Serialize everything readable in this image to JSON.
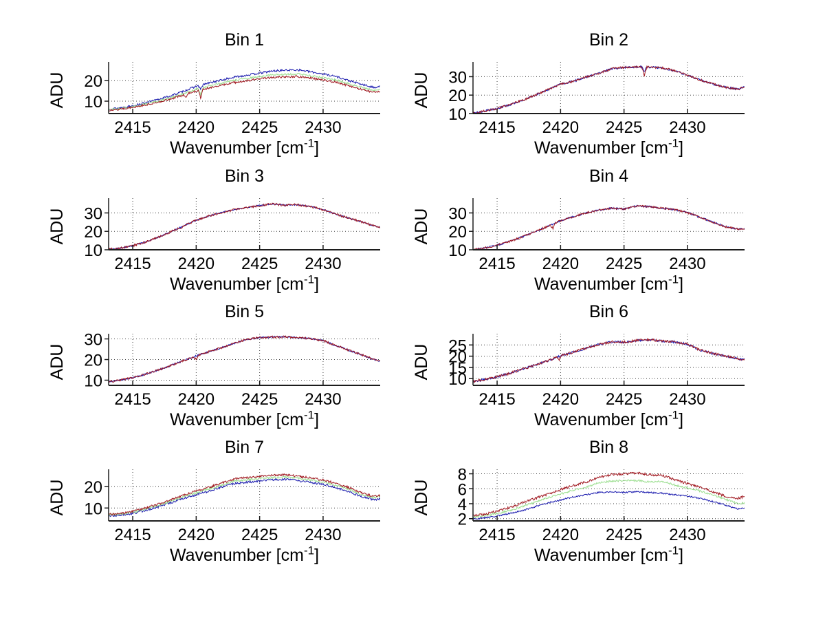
{
  "labels": {
    "ylabel": "ADU",
    "xlabel_pre": "Wavenumber [cm",
    "xlabel_sup": "-1",
    "xlabel_post": "]"
  },
  "style": {
    "line_colors": {
      "blue": "#1a1aae",
      "green": "#9ade8e",
      "red": "#a01820"
    },
    "grid_color": "#3c3c3c",
    "axis_color": "#1c1c1c",
    "background": "#ffffff",
    "grid": "dotted",
    "legend": "none"
  },
  "chart_data": [
    {
      "type": "line",
      "title": "Bin 1",
      "xlabel": "Wavenumber [cm-1]",
      "ylabel": "ADU",
      "xlim": [
        2413.1,
        2434.5
      ],
      "xticks": [
        2415,
        2420,
        2425,
        2430
      ],
      "ylim": [
        4,
        29
      ],
      "yticks": [
        10,
        20
      ],
      "x": [
        2413.2,
        2414,
        2415,
        2416,
        2417,
        2418,
        2419,
        2420,
        2421,
        2422,
        2423,
        2424,
        2425,
        2426,
        2427,
        2428,
        2429,
        2430,
        2431,
        2432,
        2433,
        2434,
        2434.5
      ],
      "series": [
        {
          "name": "blue",
          "color_key": "blue",
          "noise": 0.5,
          "spikes": [
            [
              2420.35,
              2.0
            ]
          ],
          "y": [
            6.2,
            6.8,
            7.8,
            9.2,
            10.8,
            12.6,
            14.8,
            17.2,
            18.8,
            20.2,
            21.6,
            22.6,
            23.6,
            24.6,
            25.0,
            25.2,
            24.2,
            23.2,
            22.0,
            20.0,
            18.2,
            16.6,
            17.3
          ]
        },
        {
          "name": "green",
          "color_key": "green",
          "noise": 0.45,
          "spikes": [
            [
              2420.35,
              3.0
            ]
          ],
          "y": [
            5.9,
            6.4,
            7.3,
            8.6,
            10.0,
            11.7,
            13.7,
            15.8,
            17.3,
            18.7,
            20.0,
            21.0,
            21.9,
            22.7,
            23.0,
            23.2,
            22.3,
            21.4,
            20.3,
            18.5,
            16.7,
            15.2,
            15.8
          ]
        },
        {
          "name": "red",
          "color_key": "red",
          "noise": 0.5,
          "spikes": [
            [
              2419.2,
              1.2
            ],
            [
              2420.35,
              4.0
            ]
          ],
          "y": [
            5.7,
            6.1,
            7.0,
            8.2,
            9.5,
            11.1,
            13.0,
            15.0,
            16.4,
            17.7,
            19.0,
            20.0,
            20.8,
            21.5,
            21.8,
            22.0,
            21.1,
            20.3,
            19.2,
            17.5,
            15.8,
            14.3,
            14.9
          ]
        }
      ]
    },
    {
      "type": "line",
      "title": "Bin 2",
      "xlabel": "Wavenumber [cm-1]",
      "ylabel": "ADU",
      "xlim": [
        2413.1,
        2434.5
      ],
      "xticks": [
        2415,
        2420,
        2425,
        2430
      ],
      "ylim": [
        10,
        38
      ],
      "yticks": [
        10,
        20,
        30
      ],
      "x": [
        2413.2,
        2414,
        2415,
        2416,
        2417,
        2418,
        2419,
        2420,
        2421,
        2422,
        2423,
        2424,
        2425,
        2426,
        2427,
        2428,
        2429,
        2430,
        2431,
        2432,
        2433,
        2434,
        2434.5
      ],
      "series": [
        {
          "name": "blue",
          "color_key": "blue",
          "noise": 0.55,
          "spikes": [
            [
              2426.6,
              2.5
            ]
          ],
          "y": [
            10.2,
            11.3,
            12.8,
            14.8,
            17.2,
            20.0,
            23.0,
            26.0,
            27.5,
            29.8,
            31.8,
            34.3,
            35.0,
            35.3,
            35.2,
            34.8,
            33.2,
            30.8,
            28.3,
            26.0,
            24.2,
            23.2,
            24.6
          ]
        },
        {
          "name": "red",
          "color_key": "red",
          "noise": 0.6,
          "spikes": [
            [
              2426.6,
              4.5
            ]
          ],
          "y": [
            10.2,
            11.3,
            12.8,
            14.8,
            17.2,
            20.0,
            23.0,
            26.0,
            27.5,
            29.8,
            31.8,
            34.3,
            35.0,
            35.3,
            35.2,
            34.8,
            33.2,
            30.8,
            28.3,
            26.0,
            24.2,
            23.2,
            24.6
          ]
        }
      ]
    },
    {
      "type": "line",
      "title": "Bin 3",
      "xlabel": "Wavenumber [cm-1]",
      "ylabel": "ADU",
      "xlim": [
        2413.1,
        2434.5
      ],
      "xticks": [
        2415,
        2420,
        2425,
        2430
      ],
      "ylim": [
        10,
        38
      ],
      "yticks": [
        10,
        20,
        30
      ],
      "x": [
        2413.2,
        2414,
        2415,
        2416,
        2417,
        2418,
        2419,
        2420,
        2421,
        2422,
        2423,
        2424,
        2425,
        2426,
        2427,
        2428,
        2429,
        2430,
        2431,
        2432,
        2433,
        2434,
        2434.5
      ],
      "series": [
        {
          "name": "blue",
          "color_key": "blue",
          "noise": 0.35,
          "spikes": [],
          "y": [
            10.3,
            10.9,
            12.2,
            14.2,
            16.8,
            19.8,
            23.0,
            26.0,
            28.3,
            30.3,
            31.8,
            33.0,
            34.0,
            34.8,
            34.2,
            34.5,
            33.4,
            31.8,
            29.3,
            27.3,
            25.2,
            23.0,
            22.3
          ]
        },
        {
          "name": "red",
          "color_key": "red",
          "noise": 0.6,
          "spikes": [
            [
              2418.8,
              1.3
            ]
          ],
          "y": [
            10.3,
            10.9,
            12.2,
            14.2,
            16.8,
            19.8,
            23.0,
            26.0,
            28.3,
            30.3,
            31.8,
            33.0,
            34.0,
            34.8,
            34.2,
            34.5,
            33.4,
            31.8,
            29.3,
            27.3,
            25.2,
            23.0,
            22.3
          ]
        }
      ]
    },
    {
      "type": "line",
      "title": "Bin 4",
      "xlabel": "Wavenumber [cm-1]",
      "ylabel": "ADU",
      "xlim": [
        2413.1,
        2434.5
      ],
      "xticks": [
        2415,
        2420,
        2425,
        2430
      ],
      "ylim": [
        10,
        38
      ],
      "yticks": [
        10,
        20,
        30
      ],
      "x": [
        2413.2,
        2414,
        2415,
        2416,
        2417,
        2418,
        2419,
        2420,
        2421,
        2422,
        2423,
        2424,
        2425,
        2426,
        2427,
        2428,
        2429,
        2430,
        2431,
        2432,
        2433,
        2434,
        2434.5
      ],
      "series": [
        {
          "name": "blue",
          "color_key": "blue",
          "noise": 0.45,
          "spikes": [],
          "y": [
            10.1,
            11.0,
            12.5,
            14.5,
            17.0,
            19.8,
            22.8,
            25.8,
            28.0,
            30.0,
            31.5,
            32.5,
            32.2,
            33.8,
            33.4,
            32.6,
            31.8,
            30.2,
            27.6,
            25.0,
            22.5,
            21.2,
            21.5
          ]
        },
        {
          "name": "red",
          "color_key": "red",
          "noise": 0.55,
          "spikes": [
            [
              2419.4,
              2.5
            ]
          ],
          "y": [
            10.1,
            11.0,
            12.5,
            14.5,
            17.0,
            19.8,
            22.8,
            25.8,
            28.0,
            30.0,
            31.5,
            32.5,
            32.2,
            33.8,
            33.4,
            32.6,
            31.8,
            30.2,
            27.6,
            25.0,
            22.5,
            21.2,
            21.5
          ]
        }
      ]
    },
    {
      "type": "line",
      "title": "Bin 5",
      "xlabel": "Wavenumber [cm-1]",
      "ylabel": "ADU",
      "xlim": [
        2413.1,
        2434.5
      ],
      "xticks": [
        2415,
        2420,
        2425,
        2430
      ],
      "ylim": [
        7.5,
        32.5
      ],
      "yticks": [
        10,
        20,
        30
      ],
      "x": [
        2413.2,
        2414,
        2415,
        2416,
        2417,
        2418,
        2419,
        2420,
        2421,
        2422,
        2423,
        2424,
        2425,
        2426,
        2427,
        2428,
        2429,
        2430,
        2431,
        2432,
        2433,
        2434,
        2434.5
      ],
      "series": [
        {
          "name": "blue",
          "color_key": "blue",
          "noise": 0.4,
          "spikes": [],
          "y": [
            9.3,
            10.0,
            11.2,
            12.9,
            14.9,
            17.1,
            19.5,
            21.8,
            23.8,
            25.8,
            27.8,
            29.8,
            30.6,
            30.9,
            31.0,
            30.6,
            30.2,
            29.2,
            26.8,
            24.6,
            22.4,
            20.0,
            19.2
          ]
        },
        {
          "name": "red",
          "color_key": "red",
          "noise": 0.5,
          "spikes": [
            [
              2420.0,
              1.8
            ]
          ],
          "y": [
            9.3,
            10.0,
            11.2,
            12.9,
            14.9,
            17.1,
            19.5,
            21.8,
            23.8,
            25.8,
            27.8,
            29.8,
            30.6,
            30.9,
            31.0,
            30.6,
            30.2,
            29.2,
            26.8,
            24.6,
            22.4,
            20.0,
            19.2
          ]
        }
      ]
    },
    {
      "type": "line",
      "title": "Bin 6",
      "xlabel": "Wavenumber [cm-1]",
      "ylabel": "ADU",
      "xlim": [
        2413.1,
        2434.5
      ],
      "xticks": [
        2415,
        2420,
        2425,
        2430
      ],
      "ylim": [
        7,
        30
      ],
      "yticks": [
        10,
        15,
        20,
        25
      ],
      "x": [
        2413.2,
        2414,
        2415,
        2416,
        2417,
        2418,
        2419,
        2420,
        2421,
        2422,
        2423,
        2424,
        2425,
        2426,
        2427,
        2428,
        2429,
        2430,
        2431,
        2432,
        2433,
        2434,
        2434.5
      ],
      "series": [
        {
          "name": "blue",
          "color_key": "blue",
          "noise": 0.5,
          "spikes": [],
          "y": [
            8.8,
            9.6,
            10.8,
            12.4,
            14.2,
            16.0,
            18.0,
            20.2,
            21.8,
            23.6,
            25.2,
            26.4,
            26.2,
            27.0,
            27.4,
            26.7,
            26.4,
            25.3,
            22.7,
            21.2,
            20.1,
            18.9,
            18.4
          ]
        },
        {
          "name": "red",
          "color_key": "red",
          "noise": 0.55,
          "spikes": [
            [
              2419.9,
              1.5
            ]
          ],
          "y": [
            8.8,
            9.6,
            10.8,
            12.4,
            14.2,
            16.0,
            18.0,
            20.2,
            21.8,
            23.6,
            25.2,
            26.4,
            26.2,
            27.0,
            27.4,
            26.7,
            26.4,
            25.3,
            22.7,
            21.2,
            20.1,
            18.9,
            18.4
          ]
        }
      ]
    },
    {
      "type": "line",
      "title": "Bin 7",
      "xlabel": "Wavenumber [cm-1]",
      "ylabel": "ADU",
      "xlim": [
        2413.1,
        2434.5
      ],
      "xticks": [
        2415,
        2420,
        2425,
        2430
      ],
      "ylim": [
        4,
        28
      ],
      "yticks": [
        10,
        20
      ],
      "x": [
        2413.2,
        2414,
        2415,
        2416,
        2417,
        2418,
        2419,
        2420,
        2421,
        2422,
        2423,
        2424,
        2425,
        2426,
        2427,
        2428,
        2429,
        2430,
        2431,
        2432,
        2433,
        2434,
        2434.5
      ],
      "series": [
        {
          "name": "blue",
          "color_key": "blue",
          "noise": 0.5,
          "spikes": [],
          "y": [
            6.5,
            6.7,
            7.5,
            8.9,
            10.5,
            12.4,
            14.4,
            16.2,
            17.8,
            19.7,
            21.4,
            22.0,
            22.5,
            23.1,
            23.4,
            22.7,
            21.9,
            21.0,
            19.5,
            17.6,
            15.3,
            13.8,
            14.3
          ]
        },
        {
          "name": "green",
          "color_key": "green",
          "noise": 0.45,
          "spikes": [],
          "y": [
            6.8,
            7.1,
            8.0,
            9.5,
            11.2,
            13.2,
            15.3,
            17.1,
            18.8,
            20.7,
            22.5,
            23.1,
            23.6,
            24.2,
            24.5,
            23.8,
            23.0,
            22.1,
            20.6,
            18.7,
            16.3,
            14.8,
            15.3
          ]
        },
        {
          "name": "red",
          "color_key": "red",
          "noise": 0.5,
          "spikes": [],
          "y": [
            7.0,
            7.4,
            8.4,
            10.0,
            11.8,
            13.8,
            16.0,
            17.9,
            19.6,
            21.6,
            23.5,
            24.1,
            24.6,
            25.2,
            25.5,
            24.8,
            24.0,
            23.0,
            21.5,
            19.5,
            17.1,
            15.4,
            15.9
          ]
        }
      ]
    },
    {
      "type": "line",
      "title": "Bin 8",
      "xlabel": "Wavenumber [cm-1]",
      "ylabel": "ADU",
      "xlim": [
        2413.1,
        2434.5
      ],
      "xticks": [
        2415,
        2420,
        2425,
        2430
      ],
      "ylim": [
        1.7,
        8.6
      ],
      "yticks": [
        2,
        4,
        6,
        8
      ],
      "x": [
        2413.2,
        2414,
        2415,
        2416,
        2417,
        2418,
        2419,
        2420,
        2421,
        2422,
        2423,
        2424,
        2425,
        2426,
        2427,
        2428,
        2429,
        2430,
        2431,
        2432,
        2433,
        2434,
        2434.5
      ],
      "series": [
        {
          "name": "blue",
          "color_key": "blue",
          "noise": 0.1,
          "spikes": [],
          "y": [
            2.0,
            2.1,
            2.35,
            2.7,
            3.1,
            3.6,
            4.1,
            4.5,
            4.9,
            5.2,
            5.5,
            5.6,
            5.5,
            5.6,
            5.5,
            5.4,
            5.2,
            5.0,
            4.7,
            4.3,
            3.8,
            3.3,
            3.4
          ]
        },
        {
          "name": "green",
          "color_key": "green",
          "noise": 0.13,
          "spikes": [],
          "y": [
            2.2,
            2.4,
            2.7,
            3.1,
            3.6,
            4.2,
            4.8,
            5.3,
            5.8,
            6.2,
            6.8,
            7.0,
            7.1,
            7.1,
            6.9,
            7.0,
            6.5,
            6.1,
            5.7,
            5.2,
            4.6,
            4.0,
            4.1
          ]
        },
        {
          "name": "red",
          "color_key": "red",
          "noise": 0.16,
          "spikes": [],
          "y": [
            2.4,
            2.6,
            3.0,
            3.5,
            4.1,
            4.7,
            5.3,
            5.9,
            6.4,
            6.9,
            7.5,
            7.9,
            8.0,
            8.1,
            7.9,
            7.8,
            7.2,
            6.7,
            6.2,
            5.6,
            5.0,
            4.7,
            5.0
          ]
        }
      ]
    }
  ]
}
